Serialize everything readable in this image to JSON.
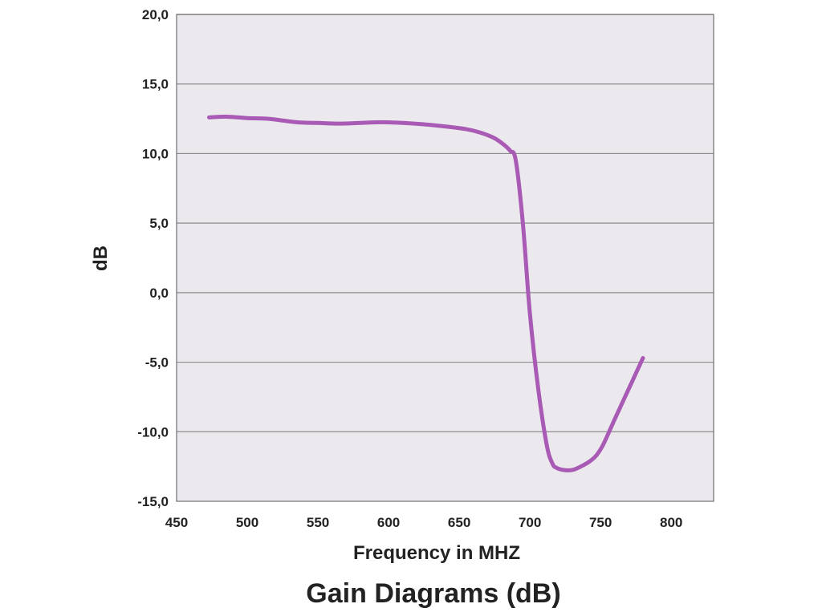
{
  "chart_data": {
    "type": "line",
    "title": "Gain Diagrams (dB)",
    "xlabel": "Frequency in MHZ",
    "ylabel": "dB",
    "xlim": [
      450,
      830
    ],
    "ylim": [
      -15,
      20
    ],
    "x_ticks": [
      450,
      500,
      550,
      600,
      650,
      700,
      750,
      800
    ],
    "x_tick_labels": [
      "450",
      "500",
      "550",
      "600",
      "650",
      "700",
      "750",
      "800"
    ],
    "y_ticks": [
      20,
      15,
      10,
      5,
      0,
      -5,
      -10,
      -15
    ],
    "y_tick_labels": [
      "20,0",
      "15,0",
      "10,0",
      "5,0",
      "0,0",
      "-5,0",
      "-10,0",
      "-15,0"
    ],
    "grid": "horizontal",
    "legend": "none",
    "series": [
      {
        "color": "#a85ab4",
        "x": [
          473,
          485,
          500,
          515,
          535,
          550,
          565,
          580,
          595,
          610,
          625,
          640,
          655,
          665,
          675,
          682,
          686,
          690,
          695,
          700,
          706,
          712,
          716,
          719,
          724,
          730,
          736,
          742,
          747,
          752,
          760,
          770,
          780
        ],
        "y": [
          12.6,
          12.65,
          12.55,
          12.5,
          12.25,
          12.2,
          12.15,
          12.2,
          12.25,
          12.2,
          12.1,
          11.95,
          11.75,
          11.5,
          11.1,
          10.6,
          10.2,
          9.5,
          5.0,
          -1.5,
          -7.0,
          -11.0,
          -12.3,
          -12.6,
          -12.75,
          -12.75,
          -12.5,
          -12.15,
          -11.7,
          -10.9,
          -9.1,
          -6.9,
          -4.7
        ]
      }
    ]
  },
  "style": {
    "plot_background": "#ebe9ee",
    "grid_color": "#8c8c8c",
    "axis_color": "#6f6f6f",
    "text_color": "#222222"
  }
}
